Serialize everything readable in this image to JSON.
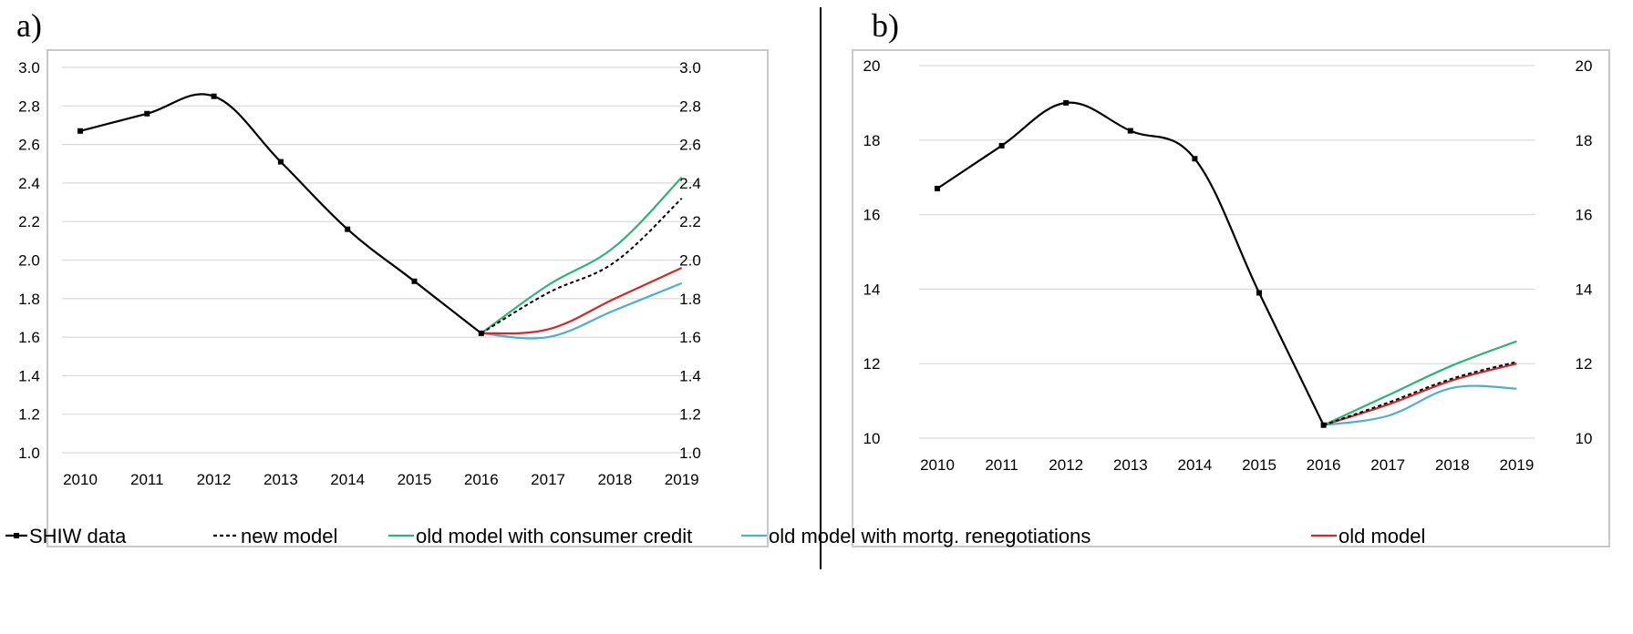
{
  "panels": [
    {
      "label": "a)",
      "chart_data": {
        "type": "line",
        "x": [
          "2010",
          "2011",
          "2012",
          "2013",
          "2014",
          "2015",
          "2016",
          "2017",
          "2018",
          "2019"
        ],
        "ylim": [
          1.0,
          3.0
        ],
        "yticks": [
          "1.0",
          "1.2",
          "1.4",
          "1.6",
          "1.8",
          "2.0",
          "2.2",
          "2.4",
          "2.6",
          "2.8",
          "3.0"
        ],
        "secondary_axis": true,
        "grid": "horizontal",
        "series": [
          {
            "name": "SHIW data",
            "color": "#000000",
            "style": "solid-marker",
            "values": [
              2.67,
              2.76,
              2.85,
              2.51,
              2.16,
              1.89,
              1.62,
              null,
              null,
              null
            ]
          },
          {
            "name": "new model",
            "color": "#000000",
            "style": "dashed",
            "values": [
              null,
              null,
              null,
              null,
              null,
              null,
              1.62,
              1.83,
              1.99,
              2.32
            ]
          },
          {
            "name": "old model with consumer credit",
            "color": "#2bb673",
            "style": "solid",
            "values": [
              null,
              null,
              null,
              null,
              null,
              null,
              1.62,
              1.87,
              2.07,
              2.43
            ]
          },
          {
            "name": "old model with mortg. renegotiations",
            "color": "#4aaed9",
            "style": "solid",
            "values": [
              null,
              null,
              null,
              null,
              null,
              null,
              1.62,
              1.6,
              1.74,
              1.88
            ]
          },
          {
            "name": "old model",
            "color": "#d62728",
            "style": "solid",
            "values": [
              null,
              null,
              null,
              null,
              null,
              null,
              1.62,
              1.64,
              1.8,
              1.96
            ]
          }
        ]
      }
    },
    {
      "label": "b)",
      "chart_data": {
        "type": "line",
        "x": [
          "2010",
          "2011",
          "2012",
          "2013",
          "2014",
          "2015",
          "2016",
          "2017",
          "2018",
          "2019"
        ],
        "ylim": [
          10,
          20
        ],
        "yticks": [
          "10",
          "12",
          "14",
          "16",
          "18",
          "20"
        ],
        "secondary_axis": true,
        "grid": "horizontal",
        "series": [
          {
            "name": "SHIW data",
            "color": "#000000",
            "style": "solid-marker",
            "values": [
              16.7,
              17.85,
              19.0,
              18.25,
              17.5,
              13.9,
              10.35,
              null,
              null,
              null
            ]
          },
          {
            "name": "new model",
            "color": "#000000",
            "style": "dashed",
            "values": [
              null,
              null,
              null,
              null,
              null,
              null,
              10.35,
              10.95,
              11.6,
              12.05
            ]
          },
          {
            "name": "old model with consumer credit",
            "color": "#2bb673",
            "style": "solid",
            "values": [
              null,
              null,
              null,
              null,
              null,
              null,
              10.35,
              11.15,
              11.95,
              12.6
            ]
          },
          {
            "name": "old model with mortg. renegotiations",
            "color": "#4aaed9",
            "style": "solid",
            "values": [
              null,
              null,
              null,
              null,
              null,
              null,
              10.35,
              10.6,
              11.35,
              11.33
            ]
          },
          {
            "name": "old model",
            "color": "#d62728",
            "style": "solid",
            "values": [
              null,
              null,
              null,
              null,
              null,
              null,
              10.35,
              10.9,
              11.55,
              12.0
            ]
          }
        ]
      }
    }
  ],
  "legend": {
    "placement": "bottom",
    "items": [
      {
        "label": "SHIW data",
        "color": "#000000",
        "style": "solid-marker"
      },
      {
        "label": "new model",
        "color": "#000000",
        "style": "dashed"
      },
      {
        "label": "old model with consumer credit",
        "color": "#2bb673",
        "style": "solid"
      },
      {
        "label": "old model with mortg. renegotiations",
        "color": "#4aaed9",
        "style": "solid"
      },
      {
        "label": "old model",
        "color": "#d62728",
        "style": "solid"
      }
    ]
  }
}
